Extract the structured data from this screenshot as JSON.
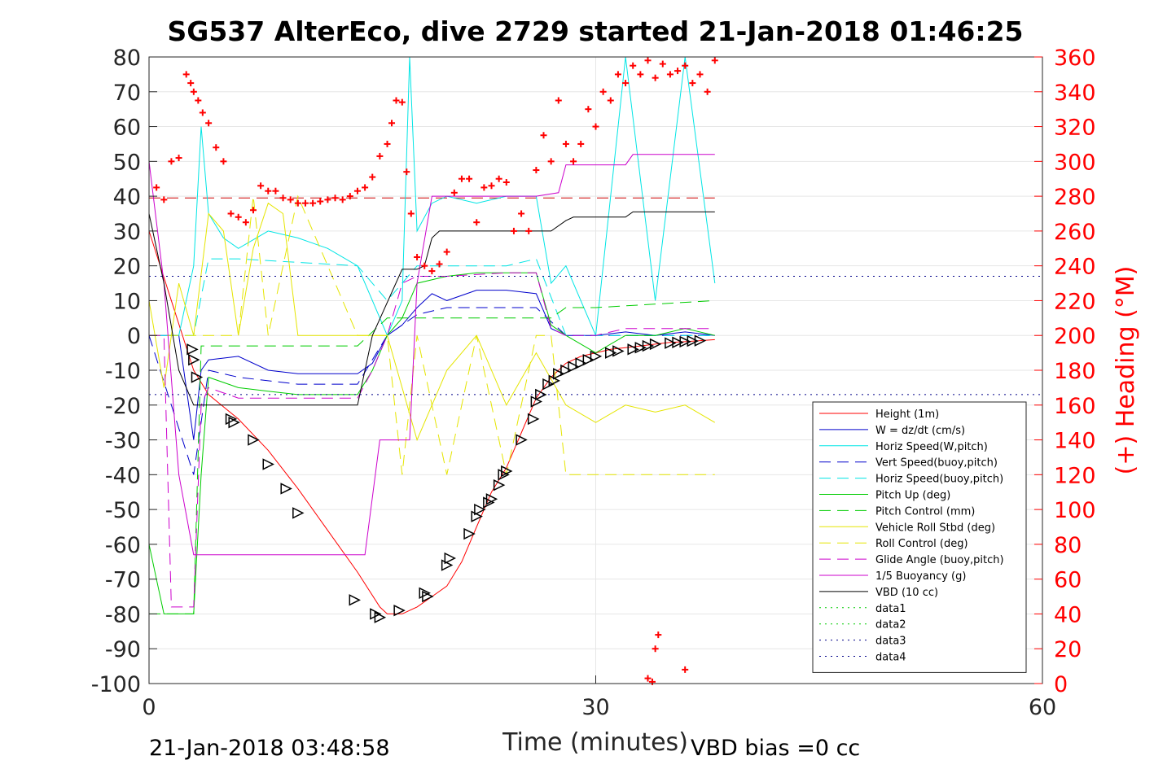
{
  "chart_data": {
    "type": "line",
    "title": "SG537 AlterEco, dive 2729 started 21-Jan-2018 01:46:25",
    "xlabel": "Time (minutes)",
    "ylabel": "",
    "ylabel_right": "(+) Heading (°M)",
    "footer_left": "21-Jan-2018 03:48:58",
    "footer_right": "VBD bias =0 cc",
    "xlim": [
      0,
      60
    ],
    "ylim": [
      -100,
      80
    ],
    "ylim_right": [
      0,
      360
    ],
    "x_ticks": [
      "0",
      "30",
      "60"
    ],
    "y_ticks": [
      "80",
      "70",
      "60",
      "50",
      "40",
      "30",
      "20",
      "10",
      "0",
      "-10",
      "-20",
      "-30",
      "-40",
      "-50",
      "-60",
      "-70",
      "-80",
      "-90",
      "-100"
    ],
    "y_ticks_right": [
      "360",
      "340",
      "320",
      "300",
      "280",
      "260",
      "240",
      "220",
      "200",
      "180",
      "160",
      "140",
      "120",
      "100",
      "80",
      "60",
      "40",
      "20",
      "0"
    ],
    "grid": true,
    "legend_position": "bottom-right",
    "colors": {
      "heading": "#ff0000",
      "right_axis": "#ff0000"
    },
    "series": [
      {
        "name": "Height (1m)",
        "color": "#ff0000",
        "dash": "solid",
        "x": [
          0,
          3,
          4,
          6,
          8,
          10,
          12,
          14,
          15.5,
          16,
          17,
          18,
          19,
          20,
          21,
          22,
          23,
          24,
          25,
          26,
          27,
          28,
          29,
          30,
          31,
          32,
          33,
          34,
          35,
          36,
          37,
          38
        ],
        "y": [
          30,
          -10,
          -17,
          -24,
          -33,
          -44,
          -56,
          -68,
          -78,
          -80,
          -80,
          -78,
          -75,
          -72,
          -65,
          -55,
          -45,
          -38,
          -28,
          -18,
          -12,
          -8,
          -6,
          -5,
          -4,
          -3.5,
          -3,
          -2.5,
          -2,
          -1.8,
          -1.5,
          -1.2
        ]
      },
      {
        "name": "W = dz/dt (cm/s)",
        "color": "#0000cc",
        "dash": "solid",
        "x": [
          0,
          2,
          3,
          3.5,
          4,
          6,
          8,
          10,
          12,
          14,
          15,
          16,
          17,
          18,
          19,
          20,
          22,
          24,
          26,
          27,
          28,
          30,
          32,
          34,
          36,
          38
        ],
        "y": [
          0,
          0,
          -30,
          -10,
          -7,
          -6,
          -10,
          -11,
          -11,
          -11,
          -8,
          0,
          3,
          8,
          12,
          10,
          13,
          13,
          12,
          2,
          0,
          0,
          1,
          0,
          1,
          0
        ]
      },
      {
        "name": "Horiz Speed(W,pitch)",
        "color": "#00e5e5",
        "dash": "solid",
        "x": [
          0,
          2,
          3,
          3.5,
          4,
          5,
          6,
          8,
          10,
          12,
          14,
          15,
          16,
          17,
          17.5,
          18,
          19,
          20,
          22,
          24,
          26,
          27,
          28,
          30,
          32,
          34,
          36,
          38
        ],
        "y": [
          0,
          0,
          20,
          60,
          35,
          28,
          25,
          30,
          28,
          25,
          20,
          10,
          0,
          10,
          80,
          30,
          38,
          40,
          38,
          40,
          40,
          15,
          20,
          0,
          80,
          10,
          80,
          15
        ]
      },
      {
        "name": "Vert Speed(buoy,pitch)",
        "color": "#0000cc",
        "dash": "dashed",
        "x": [
          0,
          3,
          4,
          6,
          10,
          14,
          16,
          18,
          20,
          24,
          26,
          28,
          32,
          38
        ],
        "y": [
          0,
          -40,
          -10,
          -12,
          -14,
          -14,
          0,
          6,
          8,
          8,
          8,
          0,
          0,
          0
        ]
      },
      {
        "name": "Horiz Speed(buoy,pitch)",
        "color": "#00e5e5",
        "dash": "dashed",
        "x": [
          0,
          3,
          4,
          6,
          10,
          14,
          16,
          18,
          20,
          24,
          26,
          28,
          32,
          38
        ],
        "y": [
          0,
          0,
          22,
          22,
          21,
          20,
          10,
          20,
          20,
          20,
          22,
          0,
          0,
          0
        ]
      },
      {
        "name": "Pitch Up (deg)",
        "color": "#00cc00",
        "dash": "solid",
        "x": [
          0,
          0.5,
          1,
          3,
          3.5,
          4,
          6,
          8,
          10,
          12,
          14,
          15,
          16,
          17,
          18,
          20,
          22,
          24,
          26,
          27,
          28,
          30,
          32,
          34,
          36,
          38
        ],
        "y": [
          -60,
          -70,
          -80,
          -80,
          -40,
          -12,
          -15,
          -16,
          -17,
          -17,
          -17,
          -10,
          0,
          5,
          15,
          17,
          18,
          18,
          18,
          3,
          0,
          -5,
          0,
          0,
          2,
          0
        ]
      },
      {
        "name": "Pitch Control (mm)",
        "color": "#00cc00",
        "dash": "dashed",
        "x": [
          0,
          2,
          3,
          3.5,
          4,
          14,
          16,
          17,
          27,
          28,
          30,
          38
        ],
        "y": [
          -80,
          -80,
          -80,
          -3,
          -3,
          -3,
          5,
          5,
          5,
          8,
          8,
          10
        ]
      },
      {
        "name": "Vehicle Roll Stbd (deg)",
        "color": "#e5e500",
        "dash": "solid",
        "x": [
          0,
          1,
          2,
          3,
          4,
          5,
          6,
          7,
          8,
          9,
          10,
          12,
          14,
          16,
          18,
          20,
          22,
          24,
          26,
          28,
          30,
          32,
          34,
          36,
          38
        ],
        "y": [
          10,
          -15,
          15,
          0,
          35,
          30,
          0,
          25,
          38,
          35,
          0,
          0,
          0,
          0,
          -30,
          -10,
          0,
          -20,
          -5,
          -20,
          -25,
          -20,
          -22,
          -20,
          -25
        ]
      },
      {
        "name": "Roll Control (deg)",
        "color": "#e5e500",
        "dash": "dashed",
        "x": [
          0,
          3,
          6,
          7,
          8,
          10,
          14,
          16,
          17,
          18,
          20,
          22,
          24,
          26,
          27,
          28,
          30,
          32,
          34,
          36,
          38
        ],
        "y": [
          0,
          0,
          0,
          40,
          0,
          40,
          0,
          0,
          -40,
          0,
          -40,
          0,
          -40,
          0,
          0,
          -40,
          -40,
          -40,
          -40,
          -40,
          -40
        ]
      },
      {
        "name": "Glide Angle (buoy,pitch)",
        "color": "#cc00cc",
        "dash": "dashed",
        "x": [
          0,
          1,
          1.5,
          3,
          3.5,
          4,
          6,
          10,
          14,
          15,
          16,
          17,
          18,
          20,
          24,
          26,
          27,
          28,
          30,
          32,
          34,
          36,
          38
        ],
        "y": [
          0,
          0,
          -78,
          -78,
          -20,
          -15,
          -18,
          -18,
          -18,
          -10,
          0,
          15,
          17,
          17,
          18,
          18,
          2,
          0,
          0,
          2,
          2,
          2,
          2
        ]
      },
      {
        "name": "1/5 Buoyancy (g)",
        "color": "#cc00cc",
        "dash": "solid",
        "x": [
          0,
          1,
          2,
          3,
          4,
          6,
          10,
          14,
          14.5,
          15.5,
          17.5,
          18,
          19,
          20,
          22,
          26,
          27.5,
          28,
          30,
          32,
          32.5,
          34,
          36,
          38
        ],
        "y": [
          50,
          15,
          -40,
          -63,
          -63,
          -63,
          -63,
          -63,
          -63,
          -30,
          -30,
          15,
          40,
          40,
          40,
          40,
          41,
          49,
          49,
          49,
          52,
          52,
          52,
          52
        ]
      },
      {
        "name": "VBD (10 cc)",
        "color": "#000000",
        "dash": "solid",
        "x": [
          0,
          1,
          2,
          3,
          14,
          15,
          17,
          18,
          18.5,
          19,
          19.5,
          26,
          27,
          28,
          28.5,
          32,
          32.5,
          38
        ],
        "y": [
          35,
          15,
          -10,
          -20,
          -20,
          0,
          19,
          19,
          20,
          28,
          30,
          30,
          30,
          33,
          34,
          34,
          35.5,
          35.5
        ]
      },
      {
        "name": "data1",
        "color": "#00cc00",
        "dash": "dotted",
        "x": [],
        "y": []
      },
      {
        "name": "data2",
        "color": "#00cc00",
        "dash": "dotted",
        "x": [],
        "y": []
      },
      {
        "name": "data3",
        "color": "#000088",
        "dash": "dotted",
        "x": [
          0,
          60
        ],
        "y": [
          17,
          17
        ]
      },
      {
        "name": "data4",
        "color": "#000088",
        "dash": "dotted",
        "x": [
          0,
          60
        ],
        "y": [
          -17,
          -17
        ]
      }
    ],
    "heading_mean_line": {
      "axis": "right",
      "y": 279,
      "color": "#cc0000",
      "dash": "dashed",
      "x": [
        0,
        38
      ]
    },
    "heading_points": {
      "axis": "right",
      "marker": "+",
      "color": "#ff0000",
      "x": [
        0.5,
        1,
        1.5,
        2,
        2.5,
        2.8,
        3,
        3.3,
        3.6,
        4,
        4.5,
        5,
        5.5,
        6,
        6.5,
        7,
        7.5,
        8,
        8.5,
        9,
        9.5,
        10,
        10.5,
        11,
        11.5,
        12,
        12.5,
        13,
        13.5,
        14,
        14.5,
        15,
        15.5,
        16,
        16.3,
        16.6,
        17,
        17.3,
        17.6,
        18,
        18.5,
        19,
        19.5,
        20,
        20.5,
        21,
        21.5,
        22,
        22.5,
        23,
        23.5,
        24,
        24.5,
        25,
        25.5,
        26,
        26.5,
        27,
        27.5,
        28,
        28.5,
        29,
        29.5,
        30,
        30.5,
        31,
        31.5,
        32,
        32.5,
        33,
        33.5,
        34,
        34.5,
        35,
        35.5,
        36,
        36.5,
        37,
        37.5,
        38,
        33.5,
        33.8,
        34,
        34.2,
        36
      ],
      "y": [
        285,
        278,
        300,
        302,
        350,
        345,
        340,
        335,
        328,
        322,
        308,
        300,
        270,
        268,
        265,
        272,
        286,
        283,
        283,
        279,
        278,
        276,
        276,
        276,
        277,
        278,
        279,
        278,
        280,
        283,
        285,
        291,
        303,
        310,
        322,
        335,
        334,
        294,
        270,
        245,
        240,
        237,
        241,
        248,
        282,
        290,
        290,
        265,
        285,
        286,
        290,
        288,
        260,
        270,
        260,
        295,
        315,
        300,
        335,
        310,
        300,
        310,
        330,
        320,
        340,
        335,
        350,
        345,
        355,
        350,
        358,
        348,
        356,
        350,
        352,
        355,
        345,
        350,
        340,
        358,
        3,
        1,
        20,
        28,
        8
      ]
    },
    "heading_label_y": 0,
    "vbd_triangles": {
      "color": "#000000",
      "x": [
        2.9,
        3,
        3.2,
        5.5,
        5.7,
        7,
        8,
        9.2,
        10,
        13.8,
        15.2,
        15.5,
        16.8,
        18.5,
        18.7,
        20,
        20.2,
        21.5,
        22,
        22.2,
        22.8,
        23,
        23.5,
        23.8,
        24,
        25,
        25.8,
        26,
        26.3,
        26.8,
        27.2,
        27.5,
        28,
        28.5,
        29,
        29.5,
        30,
        31,
        31.5,
        32.5,
        33,
        33.5,
        34,
        35,
        35.5,
        36,
        36.5,
        37
      ],
      "y": [
        -4,
        -7,
        -12,
        -24,
        -25,
        -30,
        -37,
        -44,
        -51,
        -76,
        -80,
        -81,
        -79,
        -74,
        -75,
        -66,
        -64,
        -57,
        -52,
        -50,
        -48,
        -47,
        -43,
        -40,
        -39,
        -30,
        -24,
        -19,
        -17,
        -14,
        -13,
        -11,
        -10,
        -9,
        -8,
        -7,
        -6,
        -5,
        -4.5,
        -4,
        -3.5,
        -3,
        -2.5,
        -2.2,
        -2,
        -1.8,
        -1.6,
        -1.5
      ]
    }
  }
}
